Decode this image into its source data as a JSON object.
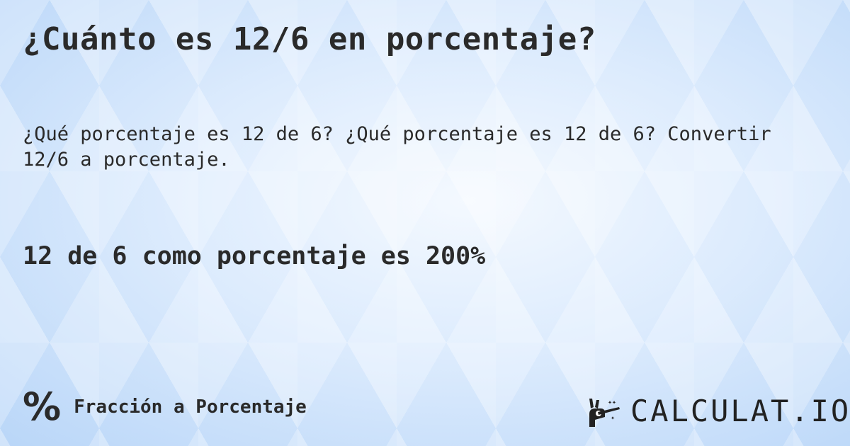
{
  "title": "¿Cuánto es 12/6 en porcentaje?",
  "description": "¿Qué porcentaje es 12 de 6? ¿Qué porcentaje es 12 de 6? Convertir 12/6 a porcentaje.",
  "answer": "12 de 6 como porcentaje es 200%",
  "category": {
    "icon": "percent-icon",
    "symbol": "%",
    "label": "Fracción a Porcentaje"
  },
  "logo": {
    "icon": "magic-hand-wand-icon",
    "text": "CALCULAT.IO"
  },
  "colors": {
    "background": "#cfe3fb",
    "text": "#2a2a2a"
  }
}
